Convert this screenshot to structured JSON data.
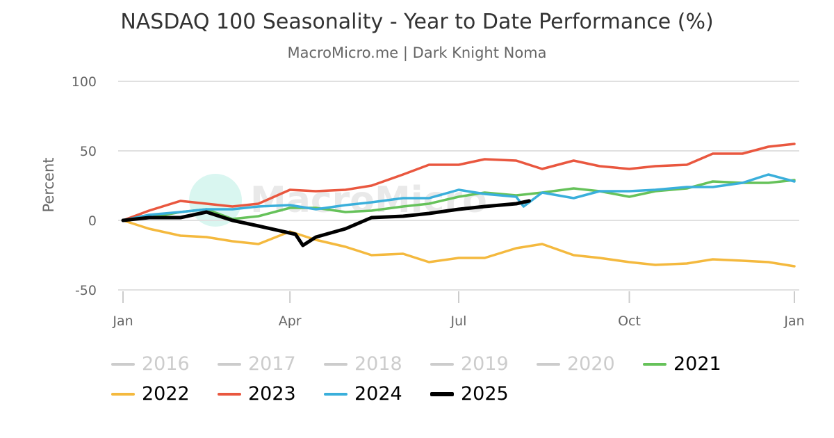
{
  "chart_data": {
    "type": "line",
    "title": "NASDAQ 100 Seasonality - Year to Date Performance (%)",
    "subtitle": "MacroMicro.me | Dark Knight Noma",
    "ylabel": "Percent",
    "xlabel": "",
    "ylim": [
      -50,
      100
    ],
    "yticks": [
      "100",
      "50",
      "0",
      "-50"
    ],
    "ytick_values": [
      100,
      50,
      0,
      -50
    ],
    "xticks": [
      "Jan",
      "Apr",
      "Jul",
      "Oct",
      "Jan"
    ],
    "xtick_dates": [
      "01-01",
      "04-01",
      "07-01",
      "10-01",
      "12-29"
    ],
    "grid": true,
    "legend_placement": "bottom",
    "watermark": "MacroMicro",
    "series": [
      {
        "name": "2016",
        "visible": false,
        "color": "#cccccc",
        "points": []
      },
      {
        "name": "2017",
        "visible": false,
        "color": "#cccccc",
        "points": []
      },
      {
        "name": "2018",
        "visible": false,
        "color": "#cccccc",
        "points": []
      },
      {
        "name": "2019",
        "visible": false,
        "color": "#cccccc",
        "points": []
      },
      {
        "name": "2020",
        "visible": false,
        "color": "#cccccc",
        "points": []
      },
      {
        "name": "2021",
        "visible": true,
        "color": "#66c25a",
        "points": [
          [
            "01-01",
            0
          ],
          [
            "01-15",
            2
          ],
          [
            "02-01",
            6
          ],
          [
            "02-15",
            8
          ],
          [
            "03-01",
            1
          ],
          [
            "03-15",
            3
          ],
          [
            "04-01",
            9
          ],
          [
            "04-15",
            9
          ],
          [
            "05-01",
            6
          ],
          [
            "05-15",
            7
          ],
          [
            "06-01",
            10
          ],
          [
            "06-15",
            12
          ],
          [
            "07-01",
            17
          ],
          [
            "07-15",
            20
          ],
          [
            "08-01",
            18
          ],
          [
            "08-15",
            20
          ],
          [
            "09-01",
            23
          ],
          [
            "09-15",
            21
          ],
          [
            "10-01",
            17
          ],
          [
            "10-15",
            21
          ],
          [
            "11-01",
            23
          ],
          [
            "11-15",
            28
          ],
          [
            "12-01",
            27
          ],
          [
            "12-15",
            27
          ],
          [
            "12-29",
            29
          ]
        ]
      },
      {
        "name": "2022",
        "visible": true,
        "color": "#f4b93e",
        "points": [
          [
            "01-01",
            0
          ],
          [
            "01-15",
            -6
          ],
          [
            "02-01",
            -11
          ],
          [
            "02-15",
            -12
          ],
          [
            "03-01",
            -15
          ],
          [
            "03-15",
            -17
          ],
          [
            "04-01",
            -8
          ],
          [
            "04-15",
            -14
          ],
          [
            "05-01",
            -19
          ],
          [
            "05-15",
            -25
          ],
          [
            "06-01",
            -24
          ],
          [
            "06-15",
            -30
          ],
          [
            "07-01",
            -27
          ],
          [
            "07-15",
            -27
          ],
          [
            "08-01",
            -20
          ],
          [
            "08-15",
            -17
          ],
          [
            "09-01",
            -25
          ],
          [
            "09-15",
            -27
          ],
          [
            "10-01",
            -30
          ],
          [
            "10-15",
            -32
          ],
          [
            "11-01",
            -31
          ],
          [
            "11-15",
            -28
          ],
          [
            "12-01",
            -29
          ],
          [
            "12-15",
            -30
          ],
          [
            "12-29",
            -33
          ]
        ]
      },
      {
        "name": "2023",
        "visible": true,
        "color": "#e9573f",
        "points": [
          [
            "01-01",
            0
          ],
          [
            "01-15",
            7
          ],
          [
            "02-01",
            14
          ],
          [
            "02-15",
            12
          ],
          [
            "03-01",
            10
          ],
          [
            "03-15",
            12
          ],
          [
            "04-01",
            22
          ],
          [
            "04-15",
            21
          ],
          [
            "05-01",
            22
          ],
          [
            "05-15",
            25
          ],
          [
            "06-01",
            33
          ],
          [
            "06-15",
            40
          ],
          [
            "07-01",
            40
          ],
          [
            "07-15",
            44
          ],
          [
            "08-01",
            43
          ],
          [
            "08-15",
            37
          ],
          [
            "09-01",
            43
          ],
          [
            "09-15",
            39
          ],
          [
            "10-01",
            37
          ],
          [
            "10-15",
            39
          ],
          [
            "11-01",
            40
          ],
          [
            "11-15",
            48
          ],
          [
            "12-01",
            48
          ],
          [
            "12-15",
            53
          ],
          [
            "12-29",
            55
          ]
        ]
      },
      {
        "name": "2024",
        "visible": true,
        "color": "#3aafdb",
        "points": [
          [
            "01-01",
            0
          ],
          [
            "01-15",
            4
          ],
          [
            "02-01",
            6
          ],
          [
            "02-15",
            8
          ],
          [
            "03-01",
            8
          ],
          [
            "03-15",
            10
          ],
          [
            "04-01",
            11
          ],
          [
            "04-15",
            8
          ],
          [
            "05-01",
            11
          ],
          [
            "05-15",
            13
          ],
          [
            "06-01",
            16
          ],
          [
            "06-15",
            16
          ],
          [
            "07-01",
            22
          ],
          [
            "07-15",
            19
          ],
          [
            "08-01",
            17
          ],
          [
            "08-05",
            10
          ],
          [
            "08-15",
            20
          ],
          [
            "09-01",
            16
          ],
          [
            "09-15",
            21
          ],
          [
            "10-01",
            21
          ],
          [
            "10-15",
            22
          ],
          [
            "11-01",
            24
          ],
          [
            "11-15",
            24
          ],
          [
            "12-01",
            27
          ],
          [
            "12-15",
            33
          ],
          [
            "12-29",
            28
          ]
        ]
      },
      {
        "name": "2025",
        "visible": true,
        "color": "#000000",
        "points": [
          [
            "01-01",
            0
          ],
          [
            "01-15",
            2
          ],
          [
            "02-01",
            2
          ],
          [
            "02-15",
            6
          ],
          [
            "03-01",
            0
          ],
          [
            "03-15",
            -4
          ],
          [
            "04-04",
            -10
          ],
          [
            "04-08",
            -18
          ],
          [
            "04-15",
            -12
          ],
          [
            "05-01",
            -6
          ],
          [
            "05-15",
            2
          ],
          [
            "06-01",
            3
          ],
          [
            "06-15",
            5
          ],
          [
            "07-01",
            8
          ],
          [
            "07-15",
            10
          ],
          [
            "08-01",
            12
          ],
          [
            "08-08",
            14
          ]
        ]
      }
    ]
  }
}
